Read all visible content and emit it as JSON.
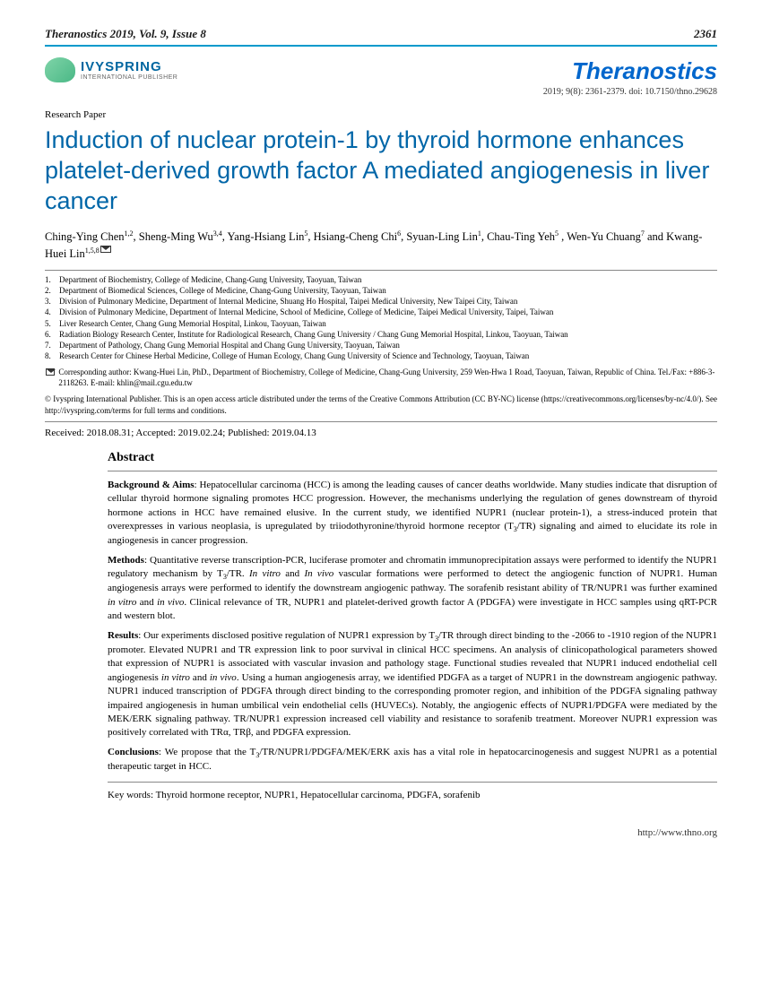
{
  "header": {
    "journal_vol": "Theranostics 2019, Vol. 9, Issue 8",
    "page_number": "2361"
  },
  "publisher": {
    "name": "IVYSPRING",
    "subtitle": "INTERNATIONAL PUBLISHER"
  },
  "journal": {
    "name": "Theranostics",
    "citation": "2019; 9(8): 2361-2379. doi: 10.7150/thno.29628"
  },
  "paper_type": "Research Paper",
  "title": "Induction of nuclear protein-1 by thyroid hormone enhances platelet-derived growth factor A mediated angiogenesis in liver cancer",
  "authors_html": "Ching-Ying Chen<sup>1,2</sup>, Sheng-Ming Wu<sup>3,4</sup>, Yang-Hsiang Lin<sup>5</sup>, Hsiang-Cheng Chi<sup>6</sup>, Syuan-Ling Lin<sup>1</sup>, Chau-Ting Yeh<sup>5</sup> , Wen-Yu Chuang<sup>7</sup> and Kwang-Huei Lin<sup>1,5,8</sup>",
  "affiliations": [
    "Department of Biochemistry, College of Medicine, Chang-Gung University, Taoyuan, Taiwan",
    "Department of Biomedical Sciences, College of Medicine, Chang-Gung University, Taoyuan, Taiwan",
    "Division of Pulmonary Medicine, Department of Internal Medicine, Shuang Ho Hospital, Taipei Medical University, New Taipei City, Taiwan",
    "Division of Pulmonary Medicine, Department of Internal Medicine, School of Medicine, College of Medicine, Taipei Medical University, Taipei, Taiwan",
    "Liver Research Center, Chang Gung Memorial Hospital, Linkou, Taoyuan, Taiwan",
    "Radiation Biology Research Center, Institute for Radiological Research, Chang Gung University / Chang Gung Memorial Hospital, Linkou, Taoyuan, Taiwan",
    "Department of Pathology, Chang Gung Memorial Hospital and Chang Gung University, Taoyuan, Taiwan",
    "Research Center for Chinese Herbal Medicine, College of Human Ecology, Chang Gung University of Science and Technology, Taoyuan, Taiwan"
  ],
  "corresponding": "Corresponding author: Kwang-Huei Lin, PhD., Department of Biochemistry, College of Medicine, Chang-Gung University, 259 Wen-Hwa 1 Road, Taoyuan, Taiwan, Republic of China. Tel./Fax: +886-3-2118263. E-mail: khlin@mail.cgu.edu.tw",
  "copyright": "© Ivyspring International Publisher. This is an open access article distributed under the terms of the Creative Commons Attribution (CC BY-NC) license (https://creativecommons.org/licenses/by-nc/4.0/). See http://ivyspring.com/terms for full terms and conditions.",
  "dates": "Received: 2018.08.31; Accepted: 2019.02.24; Published: 2019.04.13",
  "abstract": {
    "heading": "Abstract",
    "background_label": "Background & Aims",
    "background": ": Hepatocellular carcinoma (HCC) is among the leading causes of cancer deaths worldwide. Many studies indicate that disruption of cellular thyroid hormone signaling promotes HCC progression. However, the mechanisms underlying the regulation of genes downstream of thyroid hormone actions in HCC have remained elusive. In the current study, we identified NUPR1 (nuclear protein-1), a stress-induced protein that overexpresses in various neoplasia, is upregulated by triiodothyronine/thyroid hormone receptor (T",
    "background_suffix": "/TR) signaling and aimed to elucidate its role in angiogenesis in cancer progression.",
    "methods_label": "Methods",
    "methods": ": Quantitative reverse transcription-PCR, luciferase promoter and chromatin immunoprecipitation assays were performed to identify the NUPR1 regulatory mechanism by T",
    "methods_mid": "/TR. ",
    "methods_suffix": " vascular formations were performed to detect the angiogenic function of NUPR1. Human angiogenesis arrays were performed to identify the downstream angiogenic pathway. The sorafenib resistant ability of TR/NUPR1 was further examined ",
    "methods_end": ". Clinical relevance of TR, NUPR1 and platelet-derived growth factor A (PDGFA) were investigate in HCC samples using qRT-PCR and western blot.",
    "results_label": "Results",
    "results": ": Our experiments disclosed positive regulation of NUPR1 expression by T",
    "results_mid": "/TR through direct binding to the -2066 to -1910 region of the NUPR1 promoter. Elevated NUPR1 and TR expression link to poor survival in clinical HCC specimens. An analysis of clinicopathological parameters showed that expression of NUPR1 is associated with vascular invasion and pathology stage. Functional studies revealed that NUPR1 induced endothelial cell angiogenesis ",
    "results_suffix": ". Using a human angiogenesis array, we identified PDGFA as a target of NUPR1 in the downstream angiogenic pathway. NUPR1 induced transcription of PDGFA through direct binding to the corresponding promoter region, and inhibition of the PDGFA signaling pathway impaired angiogenesis in human umbilical vein endothelial cells (HUVECs). Notably, the angiogenic effects of NUPR1/PDGFA were mediated by the MEK/ERK signaling pathway. TR/NUPR1 expression increased cell viability and resistance to sorafenib treatment. Moreover NUPR1 expression was positively correlated with TRα, TRβ, and PDGFA expression.",
    "conclusions_label": "Conclusions",
    "conclusions": ": We propose that the T",
    "conclusions_suffix": "/TR/NUPR1/PDGFA/MEK/ERK axis has a vital role in hepatocarcinogenesis and suggest NUPR1 as a potential therapeutic target in HCC."
  },
  "keywords": "Key words: Thyroid hormone receptor, NUPR1, Hepatocellular carcinoma, PDGFA, sorafenib",
  "footer_url": "http://www.thno.org",
  "italic": {
    "invitro": "In vitro",
    "invivo": "In vivo",
    "in_vitro": "in vitro",
    "in_vivo": "in vivo",
    "and": " and "
  },
  "colors": {
    "accent": "#0099cc",
    "title": "#0066a8",
    "journal": "#0066cc"
  }
}
